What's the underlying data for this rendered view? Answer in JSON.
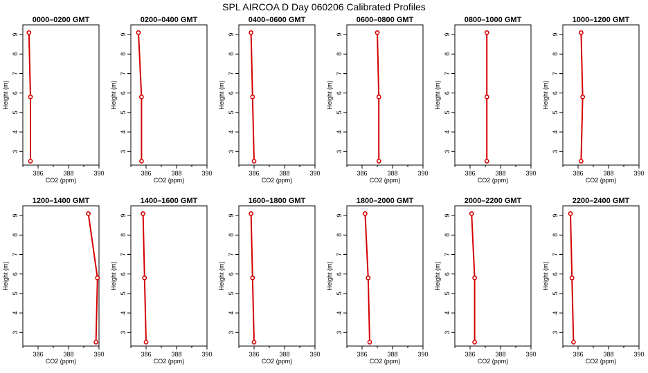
{
  "title": "SPL AIRCOA D  Day 060206  Calibrated Profiles",
  "colors": {
    "profile": "#d40000",
    "axes": "#000000",
    "background": "#ffffff"
  },
  "chart_data": [
    {
      "type": "line",
      "title": "0000–0200 GMT",
      "xlabel": "CO2 (ppm)",
      "ylabel": "Height (m)",
      "xlim": [
        385,
        390
      ],
      "ylim": [
        2.3,
        9.5
      ],
      "xticks": [
        386,
        388,
        390
      ],
      "yticks": [
        3,
        4,
        5,
        6,
        7,
        8,
        9
      ],
      "x": [
        385.4,
        385.5,
        385.5
      ],
      "y": [
        9.1,
        5.8,
        2.5
      ]
    },
    {
      "type": "line",
      "title": "0200–0400 GMT",
      "xlabel": "CO2 (ppm)",
      "ylabel": "Height (m)",
      "xlim": [
        385,
        390
      ],
      "ylim": [
        2.3,
        9.5
      ],
      "xticks": [
        386,
        388,
        390
      ],
      "yticks": [
        3,
        4,
        5,
        6,
        7,
        8,
        9
      ],
      "x": [
        385.5,
        385.7,
        385.7
      ],
      "y": [
        9.1,
        5.8,
        2.5
      ]
    },
    {
      "type": "line",
      "title": "0400–0600 GMT",
      "xlabel": "CO2 (ppm)",
      "ylabel": "Height (m)",
      "xlim": [
        385,
        390
      ],
      "ylim": [
        2.3,
        9.5
      ],
      "xticks": [
        386,
        388,
        390
      ],
      "yticks": [
        3,
        4,
        5,
        6,
        7,
        8,
        9
      ],
      "x": [
        385.8,
        385.9,
        386.0
      ],
      "y": [
        9.1,
        5.8,
        2.5
      ]
    },
    {
      "type": "line",
      "title": "0600–0800 GMT",
      "xlabel": "CO2 (ppm)",
      "ylabel": "Height (m)",
      "xlim": [
        385,
        390
      ],
      "ylim": [
        2.3,
        9.5
      ],
      "xticks": [
        386,
        388,
        390
      ],
      "yticks": [
        3,
        4,
        5,
        6,
        7,
        8,
        9
      ],
      "x": [
        387.0,
        387.1,
        387.1
      ],
      "y": [
        9.1,
        5.8,
        2.5
      ]
    },
    {
      "type": "line",
      "title": "0800–1000 GMT",
      "xlabel": "CO2 (ppm)",
      "ylabel": "Height (m)",
      "xlim": [
        385,
        390
      ],
      "ylim": [
        2.3,
        9.5
      ],
      "xticks": [
        386,
        388,
        390
      ],
      "yticks": [
        3,
        4,
        5,
        6,
        7,
        8,
        9
      ],
      "x": [
        387.1,
        387.1,
        387.1
      ],
      "y": [
        9.1,
        5.8,
        2.5
      ]
    },
    {
      "type": "line",
      "title": "1000–1200 GMT",
      "xlabel": "CO2 (ppm)",
      "ylabel": "Height (m)",
      "xlim": [
        385,
        390
      ],
      "ylim": [
        2.3,
        9.5
      ],
      "xticks": [
        386,
        388,
        390
      ],
      "yticks": [
        3,
        4,
        5,
        6,
        7,
        8,
        9
      ],
      "x": [
        386.2,
        386.3,
        386.2
      ],
      "y": [
        9.1,
        5.8,
        2.5
      ]
    },
    {
      "type": "line",
      "title": "1200–1400 GMT",
      "xlabel": "CO2 (ppm)",
      "ylabel": "Height (m)",
      "xlim": [
        385,
        390
      ],
      "ylim": [
        2.3,
        9.5
      ],
      "xticks": [
        386,
        388,
        390
      ],
      "yticks": [
        3,
        4,
        5,
        6,
        7,
        8,
        9
      ],
      "x": [
        389.3,
        389.9,
        389.8
      ],
      "y": [
        9.1,
        5.8,
        2.5
      ]
    },
    {
      "type": "line",
      "title": "1400–1600 GMT",
      "xlabel": "CO2 (ppm)",
      "ylabel": "Height (m)",
      "xlim": [
        385,
        390
      ],
      "ylim": [
        2.3,
        9.5
      ],
      "xticks": [
        386,
        388,
        390
      ],
      "yticks": [
        3,
        4,
        5,
        6,
        7,
        8,
        9
      ],
      "x": [
        385.8,
        385.9,
        386.0
      ],
      "y": [
        9.1,
        5.8,
        2.5
      ]
    },
    {
      "type": "line",
      "title": "1600–1800 GMT",
      "xlabel": "CO2 (ppm)",
      "ylabel": "Height (m)",
      "xlim": [
        385,
        390
      ],
      "ylim": [
        2.3,
        9.5
      ],
      "xticks": [
        386,
        388,
        390
      ],
      "yticks": [
        3,
        4,
        5,
        6,
        7,
        8,
        9
      ],
      "x": [
        385.8,
        385.9,
        386.0
      ],
      "y": [
        9.1,
        5.8,
        2.5
      ]
    },
    {
      "type": "line",
      "title": "1800–2000 GMT",
      "xlabel": "CO2 (ppm)",
      "ylabel": "Height (m)",
      "xlim": [
        385,
        390
      ],
      "ylim": [
        2.3,
        9.5
      ],
      "xticks": [
        386,
        388,
        390
      ],
      "yticks": [
        3,
        4,
        5,
        6,
        7,
        8,
        9
      ],
      "x": [
        386.2,
        386.4,
        386.5
      ],
      "y": [
        9.1,
        5.8,
        2.5
      ]
    },
    {
      "type": "line",
      "title": "2000–2200 GMT",
      "xlabel": "CO2 (ppm)",
      "ylabel": "Height (m)",
      "xlim": [
        385,
        390
      ],
      "ylim": [
        2.3,
        9.5
      ],
      "xticks": [
        386,
        388,
        390
      ],
      "yticks": [
        3,
        4,
        5,
        6,
        7,
        8,
        9
      ],
      "x": [
        386.1,
        386.3,
        386.3
      ],
      "y": [
        9.1,
        5.8,
        2.5
      ]
    },
    {
      "type": "line",
      "title": "2200–2400 GMT",
      "xlabel": "CO2 (ppm)",
      "ylabel": "Height (m)",
      "xlim": [
        385,
        390
      ],
      "ylim": [
        2.3,
        9.5
      ],
      "xticks": [
        386,
        388,
        390
      ],
      "yticks": [
        3,
        4,
        5,
        6,
        7,
        8,
        9
      ],
      "x": [
        385.5,
        385.6,
        385.7
      ],
      "y": [
        9.1,
        5.8,
        2.5
      ]
    }
  ]
}
